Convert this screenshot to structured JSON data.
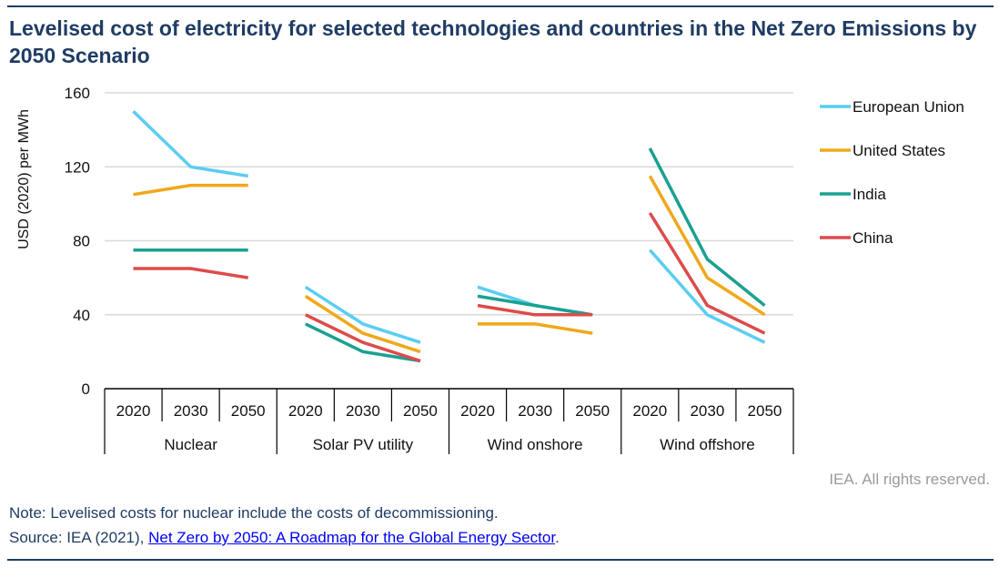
{
  "title": "Levelised cost of electricity for selected technologies and countries in the Net Zero Emissions by 2050 Scenario",
  "credit": "IEA. All rights reserved.",
  "note": "Note: Levelised costs for nuclear include the costs of decommissioning.",
  "source": {
    "prefix": "Source: IEA (2021), ",
    "link_text": "Net Zero by 2050: A Roadmap for the Global Energy Sector",
    "suffix": "."
  },
  "chart_data": {
    "type": "line",
    "ylabel": "USD (2020) per MWh",
    "ylim": [
      0,
      160
    ],
    "yticks": [
      0,
      40,
      80,
      120,
      160
    ],
    "grid": true,
    "legend_position": "right",
    "groups": [
      {
        "name": "Nuclear",
        "years": [
          "2020",
          "2030",
          "2050"
        ]
      },
      {
        "name": "Solar PV utility",
        "years": [
          "2020",
          "2030",
          "2050"
        ]
      },
      {
        "name": "Wind onshore",
        "years": [
          "2020",
          "2030",
          "2050"
        ]
      },
      {
        "name": "Wind offshore",
        "years": [
          "2020",
          "2030",
          "2050"
        ]
      }
    ],
    "series": [
      {
        "name": "European Union",
        "color": "#5bcdf2",
        "values": [
          [
            150,
            120,
            115
          ],
          [
            55,
            35,
            25
          ],
          [
            55,
            45,
            40
          ],
          [
            75,
            40,
            25
          ]
        ]
      },
      {
        "name": "United States",
        "color": "#f0a81a",
        "values": [
          [
            105,
            110,
            110
          ],
          [
            50,
            30,
            20
          ],
          [
            35,
            35,
            30
          ],
          [
            115,
            60,
            40
          ]
        ]
      },
      {
        "name": "India",
        "color": "#1aa191",
        "values": [
          [
            75,
            75,
            75
          ],
          [
            35,
            20,
            15
          ],
          [
            50,
            45,
            40
          ],
          [
            130,
            70,
            45
          ]
        ]
      },
      {
        "name": "China",
        "color": "#dd4b4b",
        "values": [
          [
            65,
            65,
            60
          ],
          [
            40,
            25,
            15
          ],
          [
            45,
            40,
            40
          ],
          [
            95,
            45,
            30
          ]
        ]
      }
    ]
  }
}
